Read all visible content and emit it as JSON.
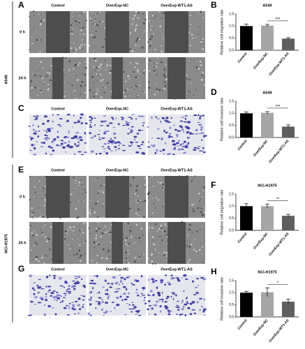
{
  "cell_lines": [
    "A549",
    "NCI-H1975"
  ],
  "image_panels": [
    {
      "label": "A",
      "columns": [
        "Control",
        "OverExp-NC",
        "OverExp-WT1-AS"
      ],
      "rows": [
        "0 h",
        "24 h"
      ]
    },
    {
      "label": "C",
      "columns": [
        "Control",
        "OverExp-NC",
        "OverExp-WT1-AS"
      ]
    },
    {
      "label": "E",
      "columns": [
        "Control",
        "OverExp-NC",
        "OverExp-WT1-AS"
      ],
      "rows": [
        "0 h",
        "24 h"
      ]
    },
    {
      "label": "G",
      "columns": [
        "Control",
        "OverExp-NC",
        "OverExp-WT1-AS"
      ]
    }
  ],
  "chart_data": [
    {
      "type": "bar",
      "panel": "B",
      "title": "A549",
      "ylabel": "Relative cell migration rate",
      "categories": [
        "Control",
        "OverExp-NC",
        "OverExp-WT1-AS"
      ],
      "values": [
        1.0,
        1.02,
        0.48
      ],
      "errors": [
        0.08,
        0.05,
        0.04
      ],
      "colors": [
        "#000000",
        "#a6a6a6",
        "#5f5f5f"
      ],
      "ylim": [
        0,
        1.5
      ],
      "yticks": [
        {
          "value": 0,
          "label": "0.0"
        },
        0.5,
        {
          "value": 1,
          "label": "1.0"
        },
        1.5
      ],
      "significance": "***"
    },
    {
      "type": "bar",
      "panel": "D",
      "title": "A549",
      "ylabel": "Relative cell invasive rate",
      "categories": [
        "Control",
        "OverExp-NC",
        "OverExp-WT1-AS"
      ],
      "values": [
        1.0,
        1.02,
        0.45
      ],
      "errors": [
        0.06,
        0.05,
        0.07
      ],
      "colors": [
        "#000000",
        "#a6a6a6",
        "#5f5f5f"
      ],
      "ylim": [
        0,
        1.5
      ],
      "yticks": [
        {
          "value": 0,
          "label": "0.0"
        },
        0.5,
        {
          "value": 1,
          "label": "1.0"
        },
        1.5
      ],
      "significance": "***"
    },
    {
      "type": "bar",
      "panel": "F",
      "title": "NCI-H1975",
      "ylabel": "Relative cell migration rate",
      "categories": [
        "Control",
        "OverExp-NC",
        "OverExp-WT1-AS"
      ],
      "values": [
        1.0,
        1.0,
        0.6
      ],
      "errors": [
        0.1,
        0.08,
        0.06
      ],
      "colors": [
        "#000000",
        "#a6a6a6",
        "#5f5f5f"
      ],
      "ylim": [
        0,
        1.5
      ],
      "yticks": [
        {
          "value": 0,
          "label": "0.0"
        },
        0.5,
        {
          "value": 1,
          "label": "1.0"
        },
        1.5
      ],
      "significance": "**"
    },
    {
      "type": "bar",
      "panel": "H",
      "title": "NCI-H1975",
      "ylabel": "Relative cell invasive rate",
      "categories": [
        "Control",
        "OverExp-NC",
        "OverExp-WT1-AS"
      ],
      "values": [
        1.0,
        1.02,
        0.63
      ],
      "errors": [
        0.06,
        0.18,
        0.1
      ],
      "colors": [
        "#000000",
        "#a6a6a6",
        "#5f5f5f"
      ],
      "ylim": [
        0,
        1.5
      ],
      "yticks": [
        {
          "value": 0,
          "label": "0.0"
        },
        0.5,
        {
          "value": 1,
          "label": "1.0"
        },
        1.5
      ],
      "significance": "*"
    }
  ]
}
